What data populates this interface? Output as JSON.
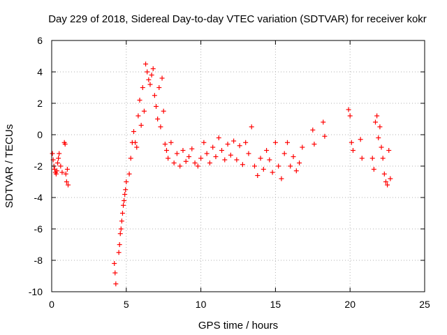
{
  "chart_data": {
    "type": "scatter",
    "title": "Day 229 of 2018, Sidereal Day-to-day VTEC variation (SDTVAR) for receiver kokr",
    "xlabel": "GPS time / hours",
    "ylabel": "SDTVAR / TECUs",
    "xlim": [
      0,
      25
    ],
    "ylim": [
      -10,
      6
    ],
    "xticks": [
      0,
      5,
      10,
      15,
      20,
      25
    ],
    "yticks": [
      -10,
      -8,
      -6,
      -4,
      -2,
      0,
      2,
      4,
      6
    ],
    "grid": true,
    "marker": "+",
    "color": "#ff0000",
    "series": [
      {
        "name": "SDTVAR",
        "x": [
          0.05,
          0.1,
          0.15,
          0.2,
          0.25,
          0.3,
          0.35,
          0.4,
          0.45,
          0.5,
          0.6,
          0.7,
          0.85,
          0.9,
          0.95,
          1.0,
          1.05,
          1.1,
          4.2,
          4.25,
          4.3,
          4.5,
          4.55,
          4.6,
          4.65,
          4.7,
          4.75,
          4.8,
          4.85,
          4.9,
          4.95,
          5.0,
          5.2,
          5.3,
          5.4,
          5.5,
          5.6,
          5.7,
          5.8,
          5.9,
          6.0,
          6.1,
          6.2,
          6.3,
          6.4,
          6.5,
          6.6,
          6.7,
          6.8,
          6.9,
          7.0,
          7.1,
          7.2,
          7.3,
          7.4,
          7.5,
          7.6,
          7.7,
          7.8,
          8.0,
          8.2,
          8.4,
          8.6,
          8.8,
          9.0,
          9.2,
          9.4,
          9.6,
          9.8,
          10.0,
          10.2,
          10.4,
          10.6,
          10.8,
          11.0,
          11.2,
          11.4,
          11.6,
          11.8,
          12.0,
          12.2,
          12.4,
          12.6,
          12.8,
          13.0,
          13.2,
          13.4,
          13.6,
          13.8,
          14.0,
          14.2,
          14.4,
          14.6,
          14.8,
          15.0,
          15.2,
          15.4,
          15.6,
          15.8,
          16.0,
          16.2,
          16.4,
          16.6,
          16.8,
          17.5,
          17.6,
          18.2,
          18.3,
          19.9,
          20.0,
          20.1,
          20.2,
          20.7,
          20.8,
          21.5,
          21.6,
          21.7,
          21.8,
          21.9,
          22.0,
          22.1,
          22.2,
          22.3,
          22.4,
          22.5,
          22.6,
          22.7
        ],
        "y": [
          -1.2,
          -1.6,
          -2.0,
          -2.2,
          -2.4,
          -2.5,
          -2.3,
          -1.8,
          -1.5,
          -1.2,
          -2.0,
          -2.4,
          -0.5,
          -0.6,
          -2.5,
          -3.0,
          -2.2,
          -3.2,
          -8.2,
          -8.8,
          -9.5,
          -7.5,
          -7.0,
          -6.3,
          -6.0,
          -5.5,
          -5.0,
          -4.5,
          -4.2,
          -3.8,
          -3.5,
          -3.0,
          -2.5,
          -1.5,
          -0.5,
          0.2,
          -0.5,
          -0.8,
          1.2,
          2.2,
          0.6,
          3.0,
          1.5,
          4.5,
          4.0,
          3.5,
          3.2,
          3.8,
          4.2,
          2.5,
          1.8,
          1.0,
          3.0,
          0.5,
          3.6,
          1.5,
          -0.6,
          -1.0,
          -1.5,
          -0.5,
          -1.8,
          -1.2,
          -2.0,
          -1.0,
          -1.7,
          -1.4,
          -0.9,
          -1.8,
          -2.0,
          -1.5,
          -0.5,
          -1.2,
          -1.8,
          -0.8,
          -1.4,
          -0.2,
          -1.0,
          -1.6,
          -0.6,
          -1.3,
          -0.4,
          -1.6,
          -0.7,
          -1.9,
          -0.5,
          -1.2,
          0.5,
          -2.0,
          -2.6,
          -1.5,
          -2.2,
          -1.0,
          -1.6,
          -2.4,
          -0.5,
          -2.0,
          -2.8,
          -1.2,
          -0.5,
          -2.0,
          -1.4,
          -2.3,
          -1.8,
          -0.8,
          0.3,
          -0.6,
          0.8,
          -0.1,
          1.6,
          1.2,
          -0.5,
          -1.0,
          -0.3,
          -1.5,
          -1.5,
          -2.2,
          0.8,
          1.2,
          -0.2,
          0.5,
          -0.8,
          -1.5,
          -2.5,
          -3.0,
          -3.2,
          -1.0,
          -2.8
        ]
      }
    ]
  }
}
